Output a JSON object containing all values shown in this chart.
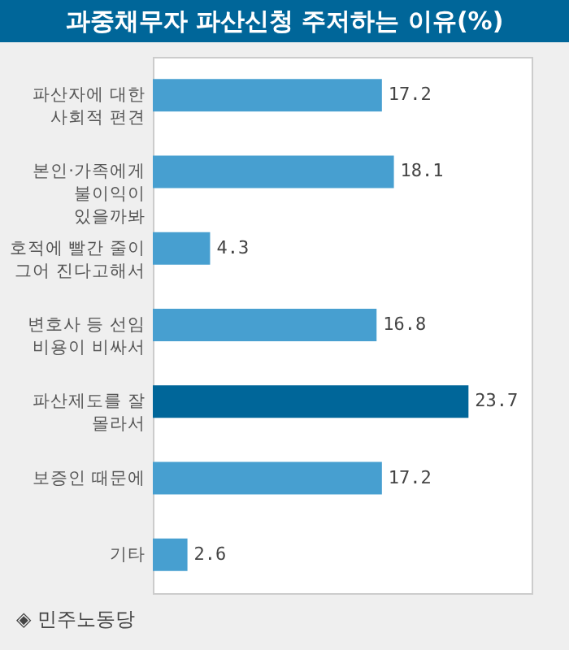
{
  "chart_data": {
    "type": "bar",
    "orientation": "horizontal",
    "title": "과중채무자 파산신청 주저하는 이유(%)",
    "categories": [
      "파산자에 대한\n사회적 편견",
      "본인·가족에게\n불이익이\n있을까봐",
      "호적에 빨간 줄이\n그어 진다고해서",
      "변호사 등 선임\n비용이 비싸서",
      "파산제도를 잘\n몰라서",
      "보증인 때문에",
      "기타"
    ],
    "values": [
      17.2,
      18.1,
      4.3,
      16.8,
      23.7,
      17.2,
      2.6
    ],
    "colors": [
      "#479fd0",
      "#479fd0",
      "#479fd0",
      "#479fd0",
      "#006699",
      "#479fd0",
      "#479fd0"
    ],
    "data_labels": true,
    "annotations": [
      "◈ 민주노동당"
    ]
  }
}
